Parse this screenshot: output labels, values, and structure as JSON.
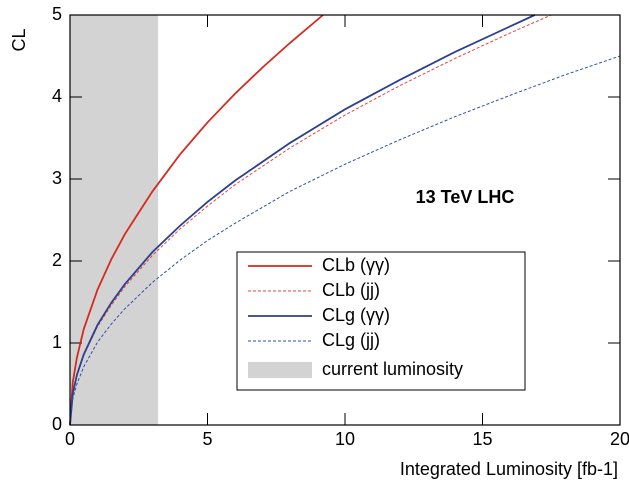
{
  "chart_data": {
    "type": "line",
    "xlabel": "Integrated Luminosity [fb-1]",
    "ylabel": "CL",
    "annotation": "13 TeV LHC",
    "xlim": [
      0,
      20
    ],
    "xticks": [
      0,
      5,
      10,
      15,
      20
    ],
    "ylim": [
      0,
      5
    ],
    "yticks": [
      0,
      1,
      2,
      3,
      4,
      5
    ],
    "shade": {
      "name": "current luminosity",
      "color": "#d3d3d3",
      "x": [
        0,
        3.2
      ]
    },
    "series": [
      {
        "name": "CLb (γγ)",
        "color": "#d62a1e",
        "dashed": false,
        "x": [
          0,
          0.1,
          0.25,
          0.5,
          1,
          1.5,
          2,
          3,
          4,
          5,
          6,
          7,
          8,
          9.2
        ],
        "values": [
          0,
          0.52,
          0.82,
          1.17,
          1.65,
          2.02,
          2.33,
          2.85,
          3.3,
          3.69,
          4.04,
          4.36,
          4.66,
          5.0
        ]
      },
      {
        "name": "CLb (jj)",
        "color": "#e8443a",
        "dashed": true,
        "x": [
          0,
          0.1,
          0.25,
          0.5,
          1,
          1.5,
          2,
          3,
          4,
          5,
          6,
          8,
          10,
          12,
          14,
          16,
          17.5
        ],
        "values": [
          0,
          0.38,
          0.6,
          0.85,
          1.2,
          1.46,
          1.69,
          2.07,
          2.39,
          2.67,
          2.93,
          3.38,
          3.78,
          4.14,
          4.47,
          4.78,
          5.0
        ]
      },
      {
        "name": "CLg (γγ)",
        "color": "#2c3f90",
        "dashed": false,
        "x": [
          0,
          0.1,
          0.25,
          0.5,
          1,
          1.5,
          2,
          3,
          4,
          5,
          6,
          8,
          10,
          12,
          14,
          16,
          16.9
        ],
        "values": [
          0,
          0.38,
          0.61,
          0.86,
          1.22,
          1.49,
          1.72,
          2.11,
          2.43,
          2.72,
          2.98,
          3.44,
          3.85,
          4.21,
          4.55,
          4.86,
          5.0
        ]
      },
      {
        "name": "CLg (jj)",
        "color": "#2f4fa8",
        "dashed": true,
        "x": [
          0,
          0.1,
          0.25,
          0.5,
          1,
          1.5,
          2,
          3,
          4,
          5,
          6,
          8,
          10,
          12,
          14,
          16,
          18,
          20
        ],
        "values": [
          0,
          0.32,
          0.5,
          0.71,
          1.01,
          1.23,
          1.42,
          1.74,
          2.01,
          2.25,
          2.46,
          2.85,
          3.18,
          3.48,
          3.76,
          4.02,
          4.27,
          4.5
        ]
      }
    ]
  }
}
